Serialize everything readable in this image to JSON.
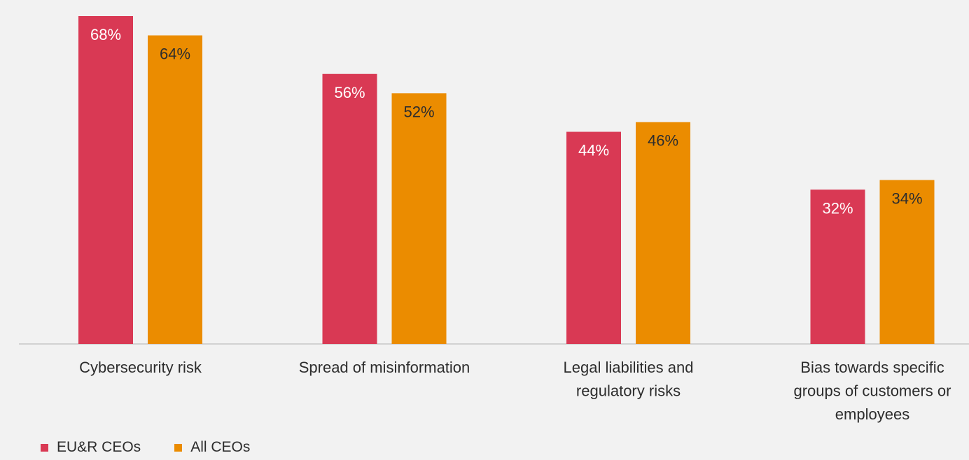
{
  "chart_data": {
    "type": "bar",
    "categories": [
      [
        "Cybersecurity risk"
      ],
      [
        "Spread of misinformation"
      ],
      [
        "Legal liabilities and",
        "regulatory risks"
      ],
      [
        "Bias towards specific",
        "groups of customers or",
        "employees"
      ]
    ],
    "series": [
      {
        "name": "EU&R CEOs",
        "values": [
          68,
          56,
          44,
          32
        ],
        "labels": [
          "68%",
          "56%",
          "44%",
          "32%"
        ],
        "color": "#d93954",
        "label_color": "#ffffff"
      },
      {
        "name": "All CEOs",
        "values": [
          64,
          52,
          46,
          34
        ],
        "labels": [
          "64%",
          "52%",
          "46%",
          "34%"
        ],
        "color": "#eb8c00",
        "label_color": "#2d2d2d"
      }
    ],
    "ylim": [
      0,
      68
    ],
    "grid": false,
    "legend_position": "bottom-left",
    "baseline_color": "#c8c8c8",
    "tick_label_color": "#2d2d2d"
  }
}
